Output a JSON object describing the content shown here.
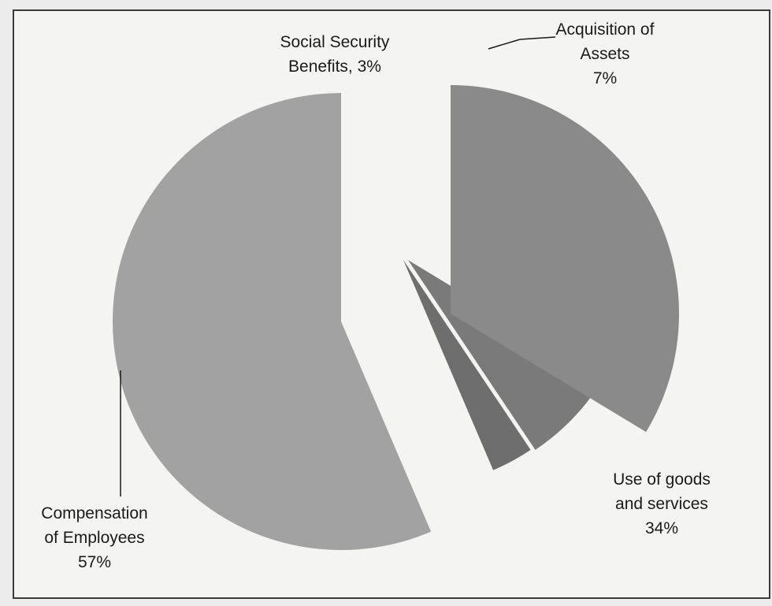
{
  "chart_data": {
    "type": "pie",
    "title": "",
    "slices": [
      {
        "name": "Compensation of Employees",
        "value": 57,
        "label_lines": [
          "Compensation",
          "of Employees",
          "57%"
        ],
        "color": "#a2a2a2"
      },
      {
        "name": "Social Security Benefits",
        "value": 3,
        "label_lines": [
          "Social Security",
          "Benefits, 3%"
        ],
        "color": "#6e6e6e"
      },
      {
        "name": "Acquisition of Assets",
        "value": 7,
        "label_lines": [
          "Acquisition of",
          "Assets",
          "7%"
        ],
        "color": "#7a7a7a"
      },
      {
        "name": "Use of goods and services",
        "value": 34,
        "label_lines": [
          "Use of goods",
          "and services",
          "34%"
        ],
        "color": "#8a8a8a"
      }
    ],
    "exploded": true,
    "legend": "none"
  }
}
